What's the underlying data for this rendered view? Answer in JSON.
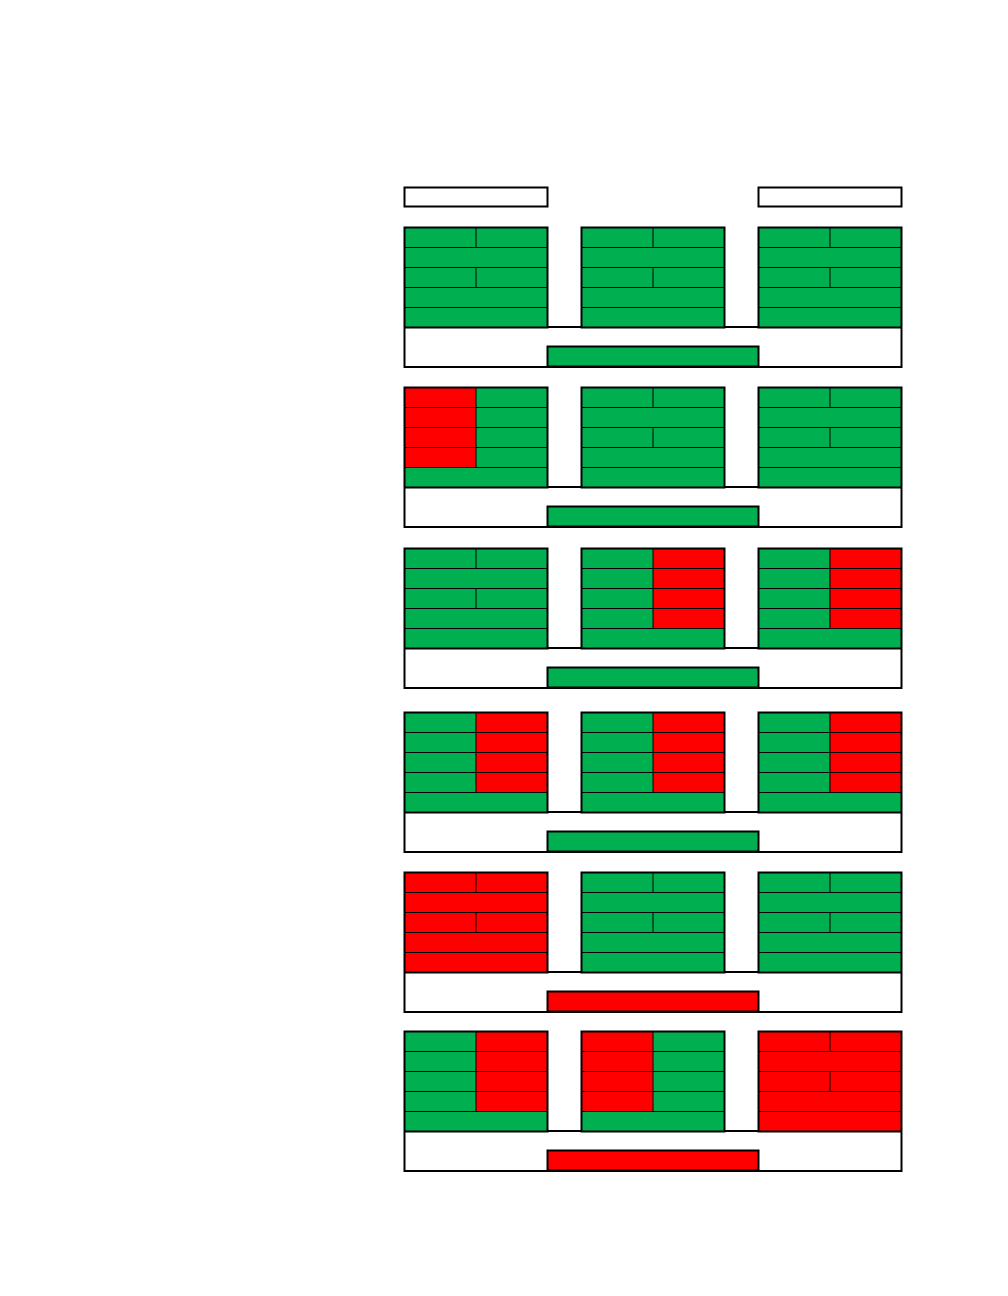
{
  "panels": [
    {
      "columns": [
        [
          [
            "#00b050",
            "#00b050"
          ],
          [
            "#00b050"
          ],
          [
            "#00b050",
            "#00b050"
          ],
          [
            "#00b050"
          ],
          [
            "#00b050"
          ]
        ],
        [
          [
            "#00b050",
            "#00b050"
          ],
          [
            "#00b050"
          ],
          [
            "#00b050",
            "#00b050"
          ],
          [
            "#00b050"
          ],
          [
            "#00b050"
          ]
        ],
        [
          [
            "#00b050",
            "#00b050"
          ],
          [
            "#00b050"
          ],
          [
            "#00b050",
            "#00b050"
          ],
          [
            "#00b050"
          ],
          [
            "#00b050"
          ]
        ]
      ],
      "bar": "#00b050"
    },
    {
      "columns": [
        [
          [
            "#ff0000",
            "#00b050"
          ],
          [
            "#ff0000",
            "#00b050"
          ],
          [
            "#ff0000",
            "#00b050"
          ],
          [
            "#ff0000",
            "#00b050"
          ],
          [
            "#00b050"
          ]
        ],
        [
          [
            "#00b050",
            "#00b050"
          ],
          [
            "#00b050"
          ],
          [
            "#00b050",
            "#00b050"
          ],
          [
            "#00b050"
          ],
          [
            "#00b050"
          ]
        ],
        [
          [
            "#00b050",
            "#00b050"
          ],
          [
            "#00b050"
          ],
          [
            "#00b050",
            "#00b050"
          ],
          [
            "#00b050"
          ],
          [
            "#00b050"
          ]
        ]
      ],
      "bar": "#00b050"
    },
    {
      "columns": [
        [
          [
            "#00b050",
            "#00b050"
          ],
          [
            "#00b050"
          ],
          [
            "#00b050",
            "#00b050"
          ],
          [
            "#00b050"
          ],
          [
            "#00b050"
          ]
        ],
        [
          [
            "#00b050",
            "#ff0000"
          ],
          [
            "#00b050",
            "#ff0000"
          ],
          [
            "#00b050",
            "#ff0000"
          ],
          [
            "#00b050",
            "#ff0000"
          ],
          [
            "#00b050"
          ]
        ],
        [
          [
            "#00b050",
            "#ff0000"
          ],
          [
            "#00b050",
            "#ff0000"
          ],
          [
            "#00b050",
            "#ff0000"
          ],
          [
            "#00b050",
            "#ff0000"
          ],
          [
            "#00b050"
          ]
        ]
      ],
      "bar": "#00b050"
    },
    {
      "columns": [
        [
          [
            "#00b050",
            "#ff0000"
          ],
          [
            "#00b050",
            "#ff0000"
          ],
          [
            "#00b050",
            "#ff0000"
          ],
          [
            "#00b050",
            "#ff0000"
          ],
          [
            "#00b050"
          ]
        ],
        [
          [
            "#00b050",
            "#ff0000"
          ],
          [
            "#00b050",
            "#ff0000"
          ],
          [
            "#00b050",
            "#ff0000"
          ],
          [
            "#00b050",
            "#ff0000"
          ],
          [
            "#00b050"
          ]
        ],
        [
          [
            "#00b050",
            "#ff0000"
          ],
          [
            "#00b050",
            "#ff0000"
          ],
          [
            "#00b050",
            "#ff0000"
          ],
          [
            "#00b050",
            "#ff0000"
          ],
          [
            "#00b050"
          ]
        ]
      ],
      "bar": "#00b050"
    },
    {
      "columns": [
        [
          [
            "#ff0000",
            "#ff0000"
          ],
          [
            "#ff0000"
          ],
          [
            "#ff0000",
            "#ff0000"
          ],
          [
            "#ff0000"
          ],
          [
            "#ff0000"
          ]
        ],
        [
          [
            "#00b050",
            "#00b050"
          ],
          [
            "#00b050"
          ],
          [
            "#00b050",
            "#00b050"
          ],
          [
            "#00b050"
          ],
          [
            "#00b050"
          ]
        ],
        [
          [
            "#00b050",
            "#00b050"
          ],
          [
            "#00b050"
          ],
          [
            "#00b050",
            "#00b050"
          ],
          [
            "#00b050"
          ],
          [
            "#00b050"
          ]
        ]
      ],
      "bar": "#ff0000"
    },
    {
      "columns": [
        [
          [
            "#00b050",
            "#ff0000"
          ],
          [
            "#00b050",
            "#ff0000"
          ],
          [
            "#00b050",
            "#ff0000"
          ],
          [
            "#00b050",
            "#ff0000"
          ],
          [
            "#00b050"
          ]
        ],
        [
          [
            "#ff0000",
            "#00b050"
          ],
          [
            "#ff0000",
            "#00b050"
          ],
          [
            "#ff0000",
            "#00b050"
          ],
          [
            "#ff0000",
            "#00b050"
          ],
          [
            "#00b050"
          ]
        ],
        [
          [
            "#ff0000",
            "#ff0000"
          ],
          [
            "#ff0000"
          ],
          [
            "#ff0000",
            "#ff0000"
          ],
          [
            "#ff0000"
          ],
          [
            "#ff0000"
          ]
        ]
      ],
      "bar": "#ff0000"
    }
  ]
}
